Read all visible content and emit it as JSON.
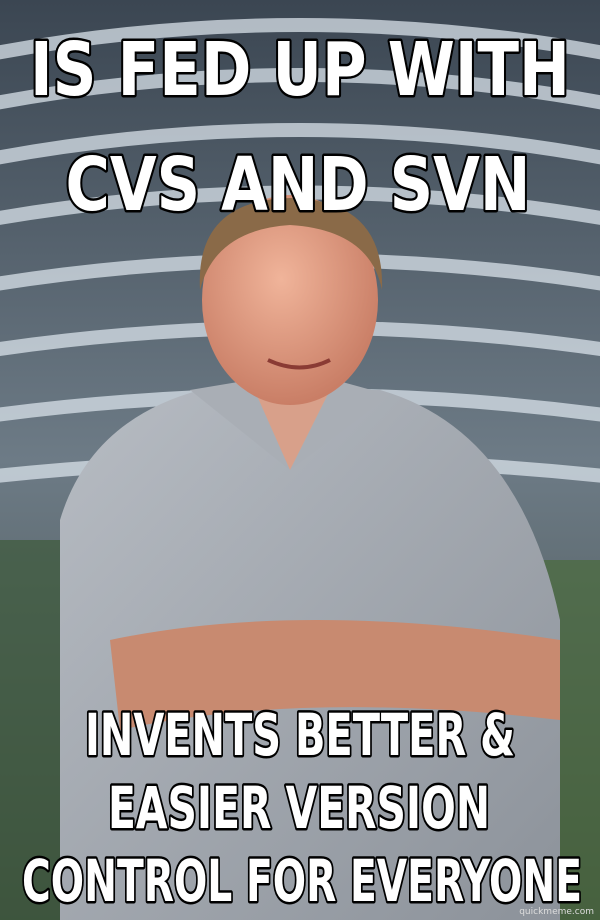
{
  "top_text": [
    "IS FED UP WITH",
    "CVS AND SVN"
  ],
  "bottom_text": [
    "INVENTS BETTER &",
    "EASIER VERSION",
    "CONTROL FOR EVERYONE"
  ],
  "watermark": "quickmeme.com"
}
